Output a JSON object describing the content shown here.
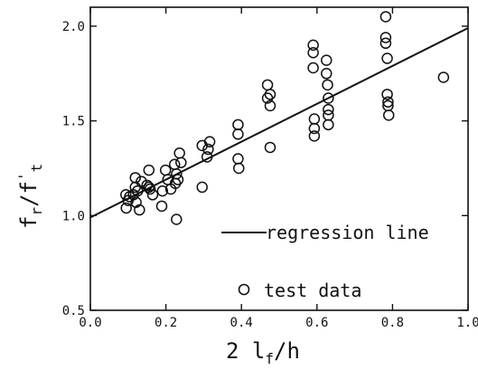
{
  "chart_data": {
    "type": "scatter",
    "title": "",
    "xlabel_main": "2 l",
    "xlabel_sub": "f",
    "xlabel_tail": "/h",
    "ylabel_main": "f",
    "ylabel_sub1": "r",
    "ylabel_mid": "/f",
    "ylabel_sup": "'",
    "ylabel_sub2": "t",
    "xlim": [
      0.0,
      1.0
    ],
    "ylim": [
      0.5,
      2.1
    ],
    "xticks": [
      {
        "value": 0.0,
        "label": "0.0"
      },
      {
        "value": 0.2,
        "label": "0.2"
      },
      {
        "value": 0.4,
        "label": "0.4"
      },
      {
        "value": 0.6,
        "label": "0.6"
      },
      {
        "value": 0.8,
        "label": "0.8"
      },
      {
        "value": 1.0,
        "label": "1.0"
      }
    ],
    "yticks": [
      {
        "value": 0.5,
        "label": "0.5"
      },
      {
        "value": 1.0,
        "label": "1.0"
      },
      {
        "value": 1.5,
        "label": "1.5"
      },
      {
        "value": 2.0,
        "label": "2.0"
      }
    ],
    "grid": false,
    "legend_placement": "bottom-right",
    "legend": {
      "line_label": "regression line",
      "marker_label": "test data"
    },
    "regression_line": {
      "x": [
        0.0,
        1.0
      ],
      "y": [
        0.99,
        1.99
      ]
    },
    "series": [
      {
        "marker": "open-circle",
        "points": [
          [
            0.094,
            1.11
          ],
          [
            0.095,
            1.04
          ],
          [
            0.1,
            1.08
          ],
          [
            0.104,
            1.1
          ],
          [
            0.114,
            1.11
          ],
          [
            0.119,
            1.2
          ],
          [
            0.119,
            1.15
          ],
          [
            0.121,
            1.07
          ],
          [
            0.125,
            1.13
          ],
          [
            0.13,
            1.03
          ],
          [
            0.135,
            1.18
          ],
          [
            0.15,
            1.16
          ],
          [
            0.155,
            1.24
          ],
          [
            0.155,
            1.15
          ],
          [
            0.158,
            1.14
          ],
          [
            0.165,
            1.11
          ],
          [
            0.189,
            1.05
          ],
          [
            0.191,
            1.13
          ],
          [
            0.199,
            1.24
          ],
          [
            0.205,
            1.19
          ],
          [
            0.213,
            1.14
          ],
          [
            0.223,
            1.27
          ],
          [
            0.225,
            1.17
          ],
          [
            0.228,
            1.22
          ],
          [
            0.232,
            1.19
          ],
          [
            0.228,
            0.98
          ],
          [
            0.236,
            1.33
          ],
          [
            0.24,
            1.28
          ],
          [
            0.296,
            1.37
          ],
          [
            0.296,
            1.15
          ],
          [
            0.309,
            1.31
          ],
          [
            0.312,
            1.35
          ],
          [
            0.316,
            1.39
          ],
          [
            0.391,
            1.48
          ],
          [
            0.391,
            1.43
          ],
          [
            0.391,
            1.3
          ],
          [
            0.393,
            1.25
          ],
          [
            0.469,
            1.69
          ],
          [
            0.469,
            1.62
          ],
          [
            0.476,
            1.64
          ],
          [
            0.476,
            1.58
          ],
          [
            0.476,
            1.36
          ],
          [
            0.59,
            1.9
          ],
          [
            0.59,
            1.86
          ],
          [
            0.59,
            1.78
          ],
          [
            0.593,
            1.51
          ],
          [
            0.593,
            1.46
          ],
          [
            0.593,
            1.42
          ],
          [
            0.625,
            1.82
          ],
          [
            0.625,
            1.75
          ],
          [
            0.628,
            1.69
          ],
          [
            0.63,
            1.62
          ],
          [
            0.63,
            1.56
          ],
          [
            0.63,
            1.53
          ],
          [
            0.63,
            1.48
          ],
          [
            0.782,
            2.05
          ],
          [
            0.782,
            1.94
          ],
          [
            0.782,
            1.91
          ],
          [
            0.786,
            1.83
          ],
          [
            0.786,
            1.64
          ],
          [
            0.788,
            1.6
          ],
          [
            0.788,
            1.58
          ],
          [
            0.79,
            1.53
          ],
          [
            0.935,
            1.73
          ]
        ]
      }
    ]
  }
}
